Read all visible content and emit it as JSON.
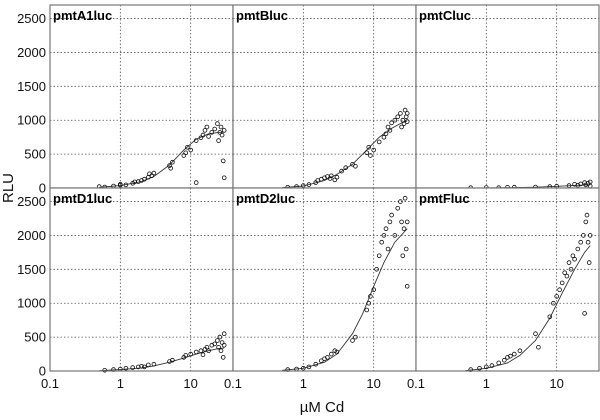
{
  "chart_data": {
    "type": "scatter",
    "xlabel": "µM Cd",
    "ylabel": "RLU",
    "x_scale": "log",
    "xlim": [
      0.1,
      40
    ],
    "ylim": [
      0,
      2700
    ],
    "x_ticks": [
      0.1,
      1,
      10
    ],
    "x_tick_labels": [
      "0.1",
      "1",
      "10"
    ],
    "y_ticks": [
      0,
      500,
      1000,
      1500,
      2000,
      2500
    ],
    "y_tick_labels": [
      "0",
      "500",
      "1000",
      "1500",
      "2000",
      "2500"
    ],
    "grid": true,
    "panels": [
      {
        "title": "pmtA1luc",
        "fit_x": [
          0.5,
          1,
          2,
          3,
          5,
          8,
          12,
          18,
          25,
          30
        ],
        "fit_y": [
          10,
          35,
          95,
          170,
          340,
          560,
          720,
          800,
          820,
          825
        ],
        "points": [
          [
            0.5,
            20
          ],
          [
            0.6,
            15
          ],
          [
            0.8,
            30
          ],
          [
            1,
            40
          ],
          [
            1,
            55
          ],
          [
            1.2,
            45
          ],
          [
            1.5,
            70
          ],
          [
            1.6,
            90
          ],
          [
            1.8,
            95
          ],
          [
            2,
            110
          ],
          [
            2.2,
            130
          ],
          [
            2.5,
            160
          ],
          [
            2.6,
            210
          ],
          [
            2.8,
            180
          ],
          [
            3,
            220
          ],
          [
            5,
            330
          ],
          [
            5.2,
            290
          ],
          [
            5.5,
            380
          ],
          [
            8,
            480
          ],
          [
            8.5,
            520
          ],
          [
            9,
            600
          ],
          [
            10,
            560
          ],
          [
            12,
            700
          ],
          [
            14,
            740
          ],
          [
            15,
            780
          ],
          [
            16,
            850
          ],
          [
            17,
            900
          ],
          [
            18,
            760
          ],
          [
            20,
            820
          ],
          [
            22,
            870
          ],
          [
            24,
            950
          ],
          [
            25,
            700
          ],
          [
            26,
            820
          ],
          [
            27,
            900
          ],
          [
            28,
            780
          ],
          [
            29,
            400
          ],
          [
            30,
            850
          ],
          [
            30,
            150
          ],
          [
            12,
            80
          ]
        ]
      },
      {
        "title": "pmtBluc",
        "fit_x": [
          0.5,
          1,
          2,
          3,
          5,
          8,
          12,
          18,
          25,
          30
        ],
        "fit_y": [
          5,
          30,
          110,
          200,
          350,
          560,
          750,
          880,
          960,
          990
        ],
        "points": [
          [
            0.6,
            10
          ],
          [
            0.8,
            20
          ],
          [
            1,
            35
          ],
          [
            1.2,
            50
          ],
          [
            1.5,
            80
          ],
          [
            1.6,
            110
          ],
          [
            1.8,
            130
          ],
          [
            2,
            150
          ],
          [
            2.2,
            170
          ],
          [
            2.4,
            140
          ],
          [
            2.5,
            180
          ],
          [
            2.8,
            120
          ],
          [
            3,
            160
          ],
          [
            3.5,
            250
          ],
          [
            4,
            300
          ],
          [
            5,
            350
          ],
          [
            5.5,
            320
          ],
          [
            8,
            520
          ],
          [
            8.5,
            600
          ],
          [
            9,
            480
          ],
          [
            10,
            560
          ],
          [
            12,
            680
          ],
          [
            14,
            750
          ],
          [
            15,
            800
          ],
          [
            16,
            900
          ],
          [
            17,
            850
          ],
          [
            18,
            960
          ],
          [
            20,
            1000
          ],
          [
            22,
            1050
          ],
          [
            24,
            1100
          ],
          [
            25,
            900
          ],
          [
            26,
            1000
          ],
          [
            27,
            950
          ],
          [
            28,
            1150
          ],
          [
            29,
            1050
          ],
          [
            30,
            980
          ],
          [
            30,
            1100
          ]
        ]
      },
      {
        "title": "pmtCluc",
        "fit_x": [
          0.5,
          1,
          2,
          5,
          10,
          20,
          30
        ],
        "fit_y": [
          0,
          2,
          5,
          12,
          25,
          40,
          45
        ],
        "points": [
          [
            0.6,
            5
          ],
          [
            1,
            8
          ],
          [
            1.5,
            5
          ],
          [
            2,
            10
          ],
          [
            2.5,
            12
          ],
          [
            5,
            15
          ],
          [
            8,
            20
          ],
          [
            10,
            25
          ],
          [
            15,
            35
          ],
          [
            18,
            55
          ],
          [
            20,
            40
          ],
          [
            22,
            60
          ],
          [
            25,
            80
          ],
          [
            26,
            45
          ],
          [
            28,
            70
          ],
          [
            30,
            90
          ],
          [
            30,
            30
          ]
        ]
      },
      {
        "title": "pmtD1luc",
        "fit_x": [
          0.5,
          1,
          2,
          3,
          5,
          8,
          12,
          18,
          25,
          30
        ],
        "fit_y": [
          5,
          20,
          45,
          75,
          130,
          190,
          250,
          300,
          330,
          340
        ],
        "points": [
          [
            0.6,
            10
          ],
          [
            0.8,
            20
          ],
          [
            1,
            30
          ],
          [
            1.2,
            40
          ],
          [
            1.5,
            50
          ],
          [
            1.8,
            60
          ],
          [
            2,
            70
          ],
          [
            2.2,
            60
          ],
          [
            2.5,
            90
          ],
          [
            3,
            100
          ],
          [
            5,
            140
          ],
          [
            5.5,
            160
          ],
          [
            8,
            200
          ],
          [
            8.5,
            230
          ],
          [
            10,
            250
          ],
          [
            12,
            280
          ],
          [
            14,
            300
          ],
          [
            15,
            240
          ],
          [
            16,
            320
          ],
          [
            17,
            350
          ],
          [
            18,
            300
          ],
          [
            20,
            380
          ],
          [
            22,
            400
          ],
          [
            24,
            450
          ],
          [
            25,
            350
          ],
          [
            26,
            500
          ],
          [
            27,
            300
          ],
          [
            28,
            420
          ],
          [
            29,
            200
          ],
          [
            30,
            550
          ],
          [
            30,
            380
          ]
        ]
      },
      {
        "title": "pmtD2luc",
        "fit_x": [
          0.5,
          1,
          2,
          3,
          5,
          7,
          10,
          14,
          20,
          30
        ],
        "fit_y": [
          10,
          40,
          130,
          250,
          550,
          850,
          1250,
          1600,
          1900,
          2100
        ],
        "points": [
          [
            0.6,
            20
          ],
          [
            0.8,
            30
          ],
          [
            1,
            40
          ],
          [
            1.2,
            60
          ],
          [
            1.5,
            100
          ],
          [
            1.8,
            150
          ],
          [
            2,
            180
          ],
          [
            2.2,
            200
          ],
          [
            2.5,
            250
          ],
          [
            2.8,
            300
          ],
          [
            3,
            280
          ],
          [
            5,
            450
          ],
          [
            5.5,
            500
          ],
          [
            8,
            900
          ],
          [
            8.5,
            1000
          ],
          [
            9,
            1100
          ],
          [
            10,
            1200
          ],
          [
            11,
            1500
          ],
          [
            12,
            1700
          ],
          [
            13,
            1900
          ],
          [
            14,
            2000
          ],
          [
            15,
            2100
          ],
          [
            16,
            1800
          ],
          [
            17,
            2200
          ],
          [
            18,
            2300
          ],
          [
            20,
            2000
          ],
          [
            22,
            2400
          ],
          [
            24,
            2500
          ],
          [
            25,
            2200
          ],
          [
            26,
            1700
          ],
          [
            27,
            2100
          ],
          [
            28,
            2550
          ],
          [
            29,
            1800
          ],
          [
            30,
            1250
          ],
          [
            30,
            2200
          ]
        ]
      },
      {
        "title": "pmtFluc",
        "fit_x": [
          0.5,
          1,
          2,
          3,
          5,
          8,
          12,
          18,
          25,
          30
        ],
        "fit_y": [
          5,
          40,
          120,
          230,
          450,
          780,
          1150,
          1500,
          1750,
          1850
        ],
        "points": [
          [
            0.6,
            20
          ],
          [
            0.8,
            40
          ],
          [
            1,
            60
          ],
          [
            1.2,
            80
          ],
          [
            1.5,
            120
          ],
          [
            1.8,
            160
          ],
          [
            2,
            200
          ],
          [
            2.2,
            220
          ],
          [
            2.5,
            250
          ],
          [
            3,
            300
          ],
          [
            5,
            550
          ],
          [
            5.5,
            350
          ],
          [
            8,
            800
          ],
          [
            9,
            1000
          ],
          [
            10,
            1100
          ],
          [
            11,
            1200
          ],
          [
            12,
            1300
          ],
          [
            13,
            1450
          ],
          [
            14,
            1400
          ],
          [
            15,
            1600
          ],
          [
            16,
            1500
          ],
          [
            17,
            1700
          ],
          [
            18,
            1650
          ],
          [
            20,
            1800
          ],
          [
            22,
            1900
          ],
          [
            24,
            2000
          ],
          [
            25,
            850
          ],
          [
            26,
            2200
          ],
          [
            27,
            2300
          ],
          [
            28,
            1900
          ],
          [
            29,
            1600
          ],
          [
            30,
            2000
          ]
        ]
      }
    ]
  }
}
